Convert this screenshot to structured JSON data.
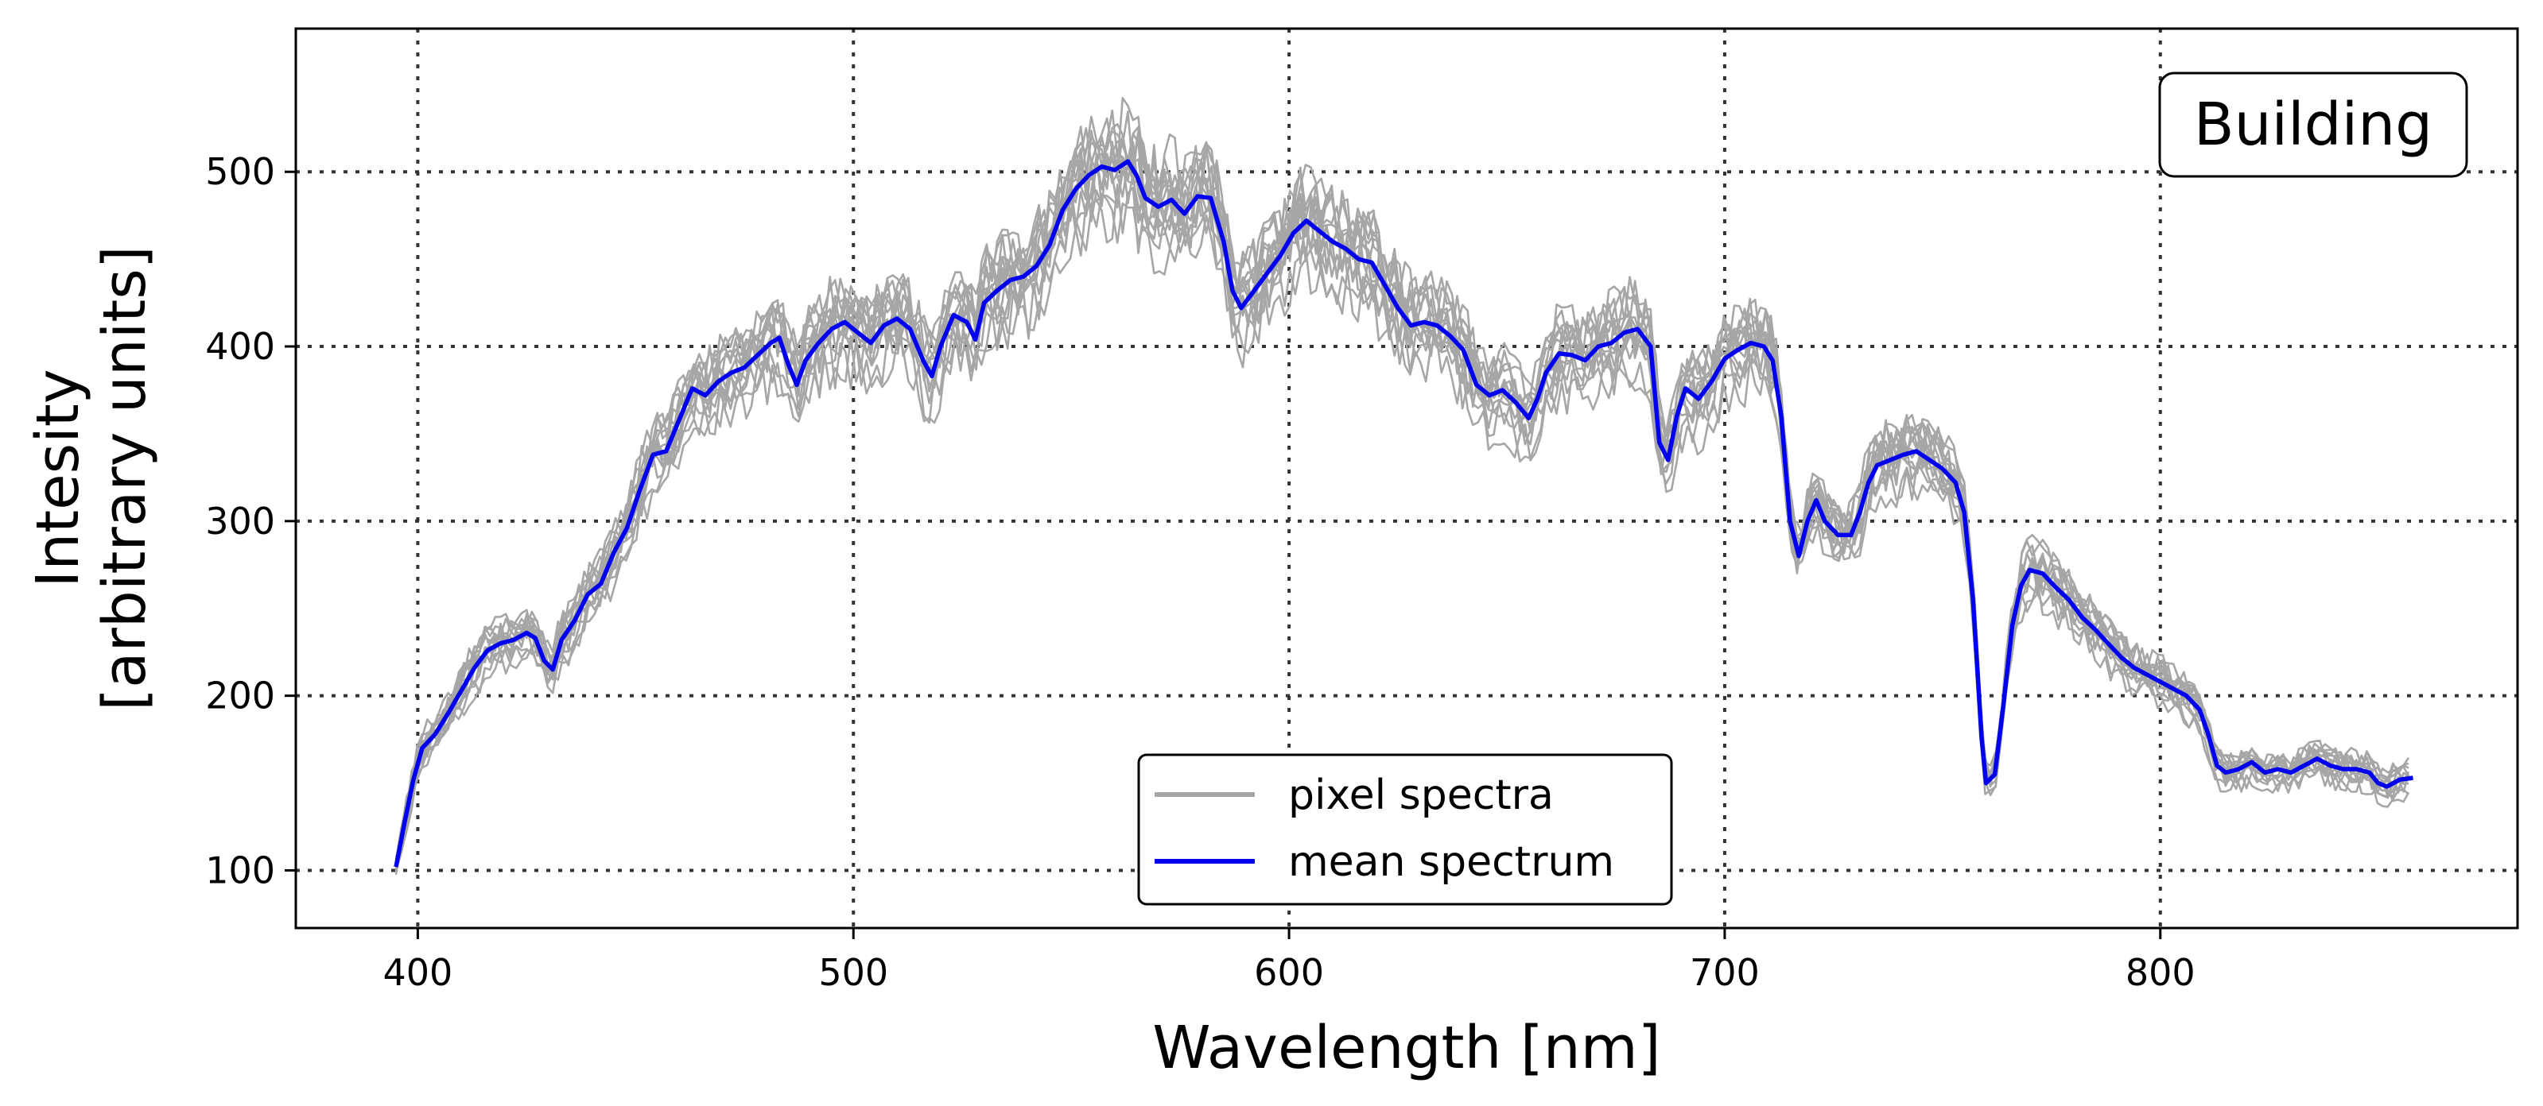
{
  "chart_data": {
    "type": "line",
    "xlabel": "Wavelength [nm]",
    "ylabel_lines": [
      "Intesity",
      "[arbitrary units]"
    ],
    "xlim": [
      372,
      882
    ],
    "ylim": [
      67,
      582
    ],
    "x_ticks": [
      400,
      500,
      600,
      700,
      800
    ],
    "y_ticks": [
      100,
      200,
      300,
      400,
      500
    ],
    "x_tick_labels": [
      "400",
      "500",
      "600",
      "700",
      "800"
    ],
    "y_tick_labels": [
      "100",
      "200",
      "300",
      "400",
      "500"
    ],
    "grid": true,
    "grid_style": "dotted",
    "annotation": "Building",
    "annotation_position": "top-right",
    "legend_position": "lower-center",
    "legend": [
      {
        "label": "pixel spectra",
        "color": "#a6a6a6"
      },
      {
        "label": "mean spectrum",
        "color": "#0000ee"
      }
    ],
    "series": [
      {
        "name": "mean spectrum",
        "color": "#0000ee",
        "points": [
          [
            395,
            102
          ],
          [
            397,
            128
          ],
          [
            399,
            152
          ],
          [
            401,
            170
          ],
          [
            404,
            178
          ],
          [
            407,
            190
          ],
          [
            410,
            203
          ],
          [
            413,
            216
          ],
          [
            416,
            226
          ],
          [
            419,
            230
          ],
          [
            422,
            232
          ],
          [
            425,
            236
          ],
          [
            427,
            233
          ],
          [
            429,
            220
          ],
          [
            431,
            215
          ],
          [
            433,
            232
          ],
          [
            436,
            243
          ],
          [
            439,
            258
          ],
          [
            442,
            264
          ],
          [
            445,
            282
          ],
          [
            448,
            296
          ],
          [
            451,
            318
          ],
          [
            454,
            338
          ],
          [
            457,
            340
          ],
          [
            460,
            358
          ],
          [
            463,
            376
          ],
          [
            466,
            372
          ],
          [
            469,
            380
          ],
          [
            472,
            385
          ],
          [
            475,
            388
          ],
          [
            478,
            395
          ],
          [
            481,
            402
          ],
          [
            483,
            405
          ],
          [
            485,
            390
          ],
          [
            487,
            378
          ],
          [
            489,
            392
          ],
          [
            492,
            402
          ],
          [
            495,
            410
          ],
          [
            498,
            414
          ],
          [
            501,
            408
          ],
          [
            504,
            402
          ],
          [
            507,
            412
          ],
          [
            510,
            416
          ],
          [
            513,
            410
          ],
          [
            516,
            392
          ],
          [
            518,
            383
          ],
          [
            520,
            400
          ],
          [
            523,
            418
          ],
          [
            526,
            414
          ],
          [
            528,
            404
          ],
          [
            530,
            425
          ],
          [
            533,
            432
          ],
          [
            536,
            438
          ],
          [
            539,
            440
          ],
          [
            542,
            446
          ],
          [
            545,
            458
          ],
          [
            548,
            478
          ],
          [
            551,
            490
          ],
          [
            554,
            498
          ],
          [
            557,
            503
          ],
          [
            560,
            501
          ],
          [
            563,
            506
          ],
          [
            565,
            498
          ],
          [
            567,
            485
          ],
          [
            570,
            480
          ],
          [
            573,
            484
          ],
          [
            576,
            476
          ],
          [
            579,
            486
          ],
          [
            582,
            485
          ],
          [
            585,
            460
          ],
          [
            587,
            432
          ],
          [
            589,
            422
          ],
          [
            592,
            432
          ],
          [
            595,
            442
          ],
          [
            598,
            452
          ],
          [
            601,
            465
          ],
          [
            604,
            472
          ],
          [
            607,
            466
          ],
          [
            610,
            460
          ],
          [
            613,
            456
          ],
          [
            616,
            450
          ],
          [
            619,
            448
          ],
          [
            622,
            435
          ],
          [
            625,
            422
          ],
          [
            628,
            412
          ],
          [
            631,
            414
          ],
          [
            634,
            412
          ],
          [
            637,
            406
          ],
          [
            640,
            398
          ],
          [
            643,
            378
          ],
          [
            646,
            372
          ],
          [
            649,
            375
          ],
          [
            652,
            368
          ],
          [
            655,
            359
          ],
          [
            657,
            370
          ],
          [
            659,
            385
          ],
          [
            662,
            396
          ],
          [
            665,
            395
          ],
          [
            668,
            392
          ],
          [
            671,
            400
          ],
          [
            674,
            402
          ],
          [
            677,
            408
          ],
          [
            680,
            410
          ],
          [
            683,
            400
          ],
          [
            685,
            345
          ],
          [
            687,
            335
          ],
          [
            689,
            360
          ],
          [
            691,
            376
          ],
          [
            694,
            370
          ],
          [
            697,
            380
          ],
          [
            700,
            393
          ],
          [
            703,
            398
          ],
          [
            706,
            402
          ],
          [
            709,
            400
          ],
          [
            711,
            392
          ],
          [
            713,
            360
          ],
          [
            715,
            300
          ],
          [
            717,
            280
          ],
          [
            719,
            300
          ],
          [
            721,
            312
          ],
          [
            723,
            300
          ],
          [
            726,
            292
          ],
          [
            729,
            292
          ],
          [
            731,
            305
          ],
          [
            733,
            322
          ],
          [
            735,
            332
          ],
          [
            738,
            335
          ],
          [
            741,
            338
          ],
          [
            744,
            340
          ],
          [
            747,
            335
          ],
          [
            750,
            330
          ],
          [
            753,
            322
          ],
          [
            755,
            305
          ],
          [
            757,
            255
          ],
          [
            759,
            175
          ],
          [
            760,
            150
          ],
          [
            762,
            155
          ],
          [
            764,
            195
          ],
          [
            766,
            240
          ],
          [
            768,
            263
          ],
          [
            770,
            272
          ],
          [
            773,
            270
          ],
          [
            776,
            262
          ],
          [
            779,
            255
          ],
          [
            782,
            245
          ],
          [
            785,
            238
          ],
          [
            788,
            230
          ],
          [
            791,
            222
          ],
          [
            794,
            216
          ],
          [
            797,
            212
          ],
          [
            800,
            208
          ],
          [
            803,
            204
          ],
          [
            806,
            200
          ],
          [
            809,
            192
          ],
          [
            811,
            178
          ],
          [
            813,
            160
          ],
          [
            815,
            156
          ],
          [
            818,
            158
          ],
          [
            821,
            162
          ],
          [
            824,
            156
          ],
          [
            827,
            158
          ],
          [
            830,
            156
          ],
          [
            833,
            160
          ],
          [
            836,
            164
          ],
          [
            839,
            160
          ],
          [
            842,
            158
          ],
          [
            845,
            158
          ],
          [
            848,
            156
          ],
          [
            850,
            150
          ],
          [
            852,
            148
          ],
          [
            855,
            152
          ],
          [
            858,
            153
          ]
        ]
      }
    ]
  }
}
